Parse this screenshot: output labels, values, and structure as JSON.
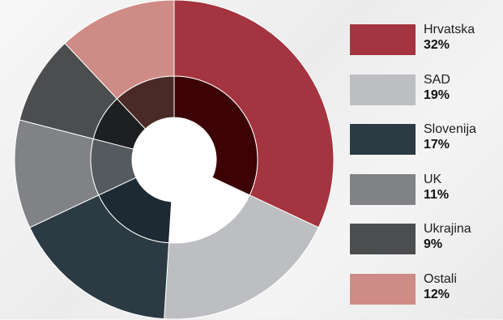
{
  "chart_data": {
    "type": "pie",
    "title": "",
    "series": [
      {
        "label": "Hrvatska",
        "value_text": "32%",
        "value": 32,
        "color": "#a4343f",
        "inner_color": "#3c0206"
      },
      {
        "label": "SAD",
        "value_text": "19%",
        "value": 19,
        "color": "#bdbec1",
        "inner_color": "#ffffff"
      },
      {
        "label": "Slovenija",
        "value_text": "17%",
        "value": 17,
        "color": "#2b3a43",
        "inner_color": "#1d2a33"
      },
      {
        "label": "UK",
        "value_text": "11%",
        "value": 11,
        "color": "#808285",
        "inner_color": "#555a5e"
      },
      {
        "label": "Ukrajina",
        "value_text": "9%",
        "value": 9,
        "color": "#4b4d4f",
        "inner_color": "#1e1f21"
      },
      {
        "label": "Ostali",
        "value_text": "12%",
        "value": 12,
        "color": "#cf8b86",
        "inner_color": "#4a2a27"
      }
    ],
    "legend_position": "right"
  }
}
